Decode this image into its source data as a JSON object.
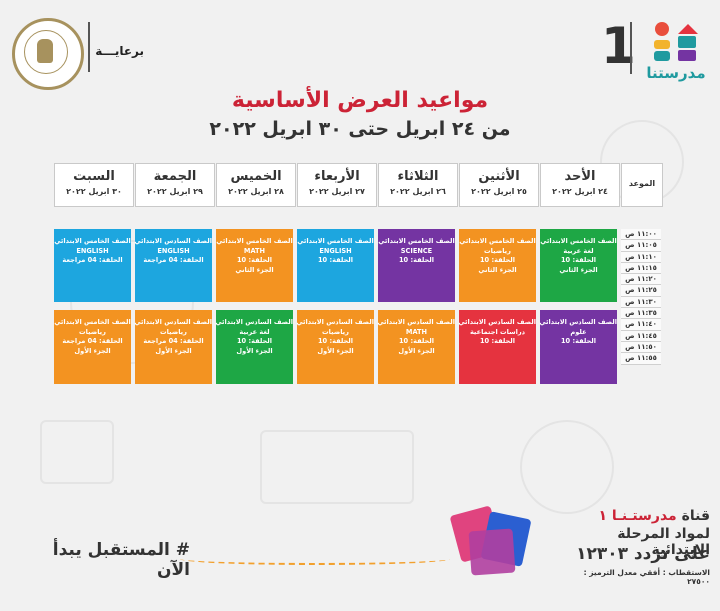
{
  "header": {
    "sponsor_label": "برعايـــة",
    "brand_number": "1",
    "brand_name": "مدرستنا"
  },
  "title": "مواعيد العرض الأساسية",
  "subtitle": "من ٢٤ ابريل حتى ٣٠ ابريل ٢٠٢٢",
  "time_header": "الموعد",
  "days": [
    {
      "name": "الأحد",
      "date": "٢٤ ابريل ٢٠٢٢"
    },
    {
      "name": "الأثنين",
      "date": "٢٥ ابريل ٢٠٢٢"
    },
    {
      "name": "الثلاثاء",
      "date": "٢٦ ابريل ٢٠٢٢"
    },
    {
      "name": "الأربعاء",
      "date": "٢٧ ابريل ٢٠٢٢"
    },
    {
      "name": "الخميس",
      "date": "٢٨ ابريل ٢٠٢٢"
    },
    {
      "name": "الجمعة",
      "date": "٢٩ ابريل ٢٠٢٢"
    },
    {
      "name": "السبت",
      "date": "٣٠ ابريل ٢٠٢٢"
    }
  ],
  "times": [
    "١١:٠٠ ص",
    "١١:٠٥ ص",
    "١١:١٠ ص",
    "١١:١٥ ص",
    "١١:٢٠ ص",
    "١١:٢٥ ص",
    "١١:٣٠ ص",
    "١١:٣٥ ص",
    "١١:٤٠ ص",
    "١١:٤٥ ص",
    "١١:٥٠ ص",
    "١١:٥٥ ص"
  ],
  "schedule": {
    "row1": [
      {
        "color": "#1ea745",
        "lines": [
          "الصف الخامس الابتدائي",
          "لغة عربية",
          "الحلقة: 10",
          "الجزء الثاني"
        ]
      },
      {
        "color": "#f39321",
        "lines": [
          "الصف الخامس الابتدائي",
          "رياضيات",
          "الحلقة: 10",
          "الجزء الثاني"
        ]
      },
      {
        "color": "#7434a2",
        "lines": [
          "الصف الخامس الابتدائي",
          "SCIENCE",
          "الحلقة: 10"
        ]
      },
      {
        "color": "#1da6df",
        "lines": [
          "الصف الخامس الابتدائي",
          "ENGLISH",
          "الحلقة: 10"
        ]
      },
      {
        "color": "#f39321",
        "lines": [
          "الصف الخامس الابتدائي",
          "MATH",
          "الحلقة: 10",
          "الجزء الثاني"
        ]
      },
      {
        "color": "#1da6df",
        "lines": [
          "الصف السادس الابتدائي",
          "ENGLISH",
          "الحلقة: 04 مراجعة"
        ]
      },
      {
        "color": "#1da6df",
        "lines": [
          "الصف الخامس الابتدائي",
          "ENGLISH",
          "الحلقة: 04 مراجعة"
        ]
      }
    ],
    "row2": [
      {
        "color": "#7434a2",
        "lines": [
          "الصف السادس الابتدائي",
          "علوم",
          "الحلقة: 10"
        ]
      },
      {
        "color": "#e5333f",
        "lines": [
          "الصف السادس الابتدائي",
          "دراسات اجتماعية",
          "الحلقة: 10"
        ]
      },
      {
        "color": "#f39321",
        "lines": [
          "الصف السادس الابتدائي",
          "MATH",
          "الحلقة: 10",
          "الجزء الأول"
        ]
      },
      {
        "color": "#f39321",
        "lines": [
          "الصف السادس الابتدائي",
          "رياضيات",
          "الحلقة: 10",
          "الجزء الأول"
        ]
      },
      {
        "color": "#1ea745",
        "lines": [
          "الصف السادس الابتدائي",
          "لغة عربية",
          "الحلقة: 10",
          "الجزء الأول"
        ]
      },
      {
        "color": "#f39321",
        "lines": [
          "الصف السادس الابتدائي",
          "رياضيات",
          "الحلقة: 04 مراجعة",
          "الجزء الأول"
        ]
      },
      {
        "color": "#f39321",
        "lines": [
          "الصف الخامس الابتدائي",
          "رياضيات",
          "الحلقة: 04 مراجعة",
          "الجزء الأول"
        ]
      }
    ]
  },
  "footer": {
    "hashtag": "# المستقبل يبدأ الآن",
    "channel_prefix": "قناة",
    "channel_name": "مدرستـنـا ١",
    "channel_sub": "لمواد المرحلة الابتدائية",
    "frequency": "على تردد ١٢٣٠٣",
    "reception": "الاستقطاب : أفقي معدل الترميز : ٢٧٥٠٠"
  }
}
